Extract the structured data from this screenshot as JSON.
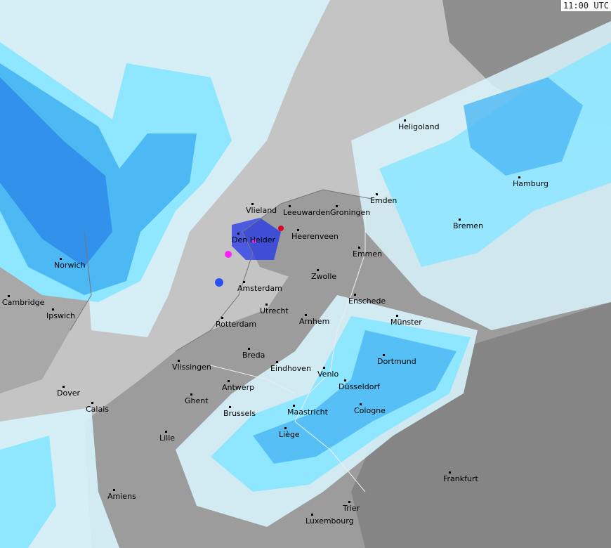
{
  "timestamp": "11:00 UTC",
  "colors": {
    "sea": "#c4c4c4",
    "land": "#9c9c9c",
    "land_dark": "#858585",
    "rain_light": "#d8f4fc",
    "rain_cyan": "#8ee6ff",
    "rain_mid": "#4cb8f4",
    "rain_heavy": "#2a86e8",
    "rain_intense": "#1a2ef0",
    "rain_extreme": "#ff20ff"
  },
  "cities": [
    "Heligoland",
    "Hamburg",
    "Emden",
    "Bremen",
    "Vlieland",
    "Leeuwarden",
    "Groningen",
    "Den Helder",
    "Heerenveen",
    "Emmen",
    "Norwich",
    "Zwolle",
    "Amsterdam",
    "Enschede",
    "Cambridge",
    "Utrecht",
    "Ipswich",
    "Rotterdam",
    "Arnhem",
    "Münster",
    "Breda",
    "Vlissingen",
    "Eindhoven",
    "Venlo",
    "Dortmund",
    "Dover",
    "Antwerp",
    "Düsseldorf",
    "Calais",
    "Ghent",
    "Brussels",
    "Maastricht",
    "Cologne",
    "Lille",
    "Liège",
    "Frankfurt",
    "Amiens",
    "Trier",
    "Luxembourg"
  ]
}
